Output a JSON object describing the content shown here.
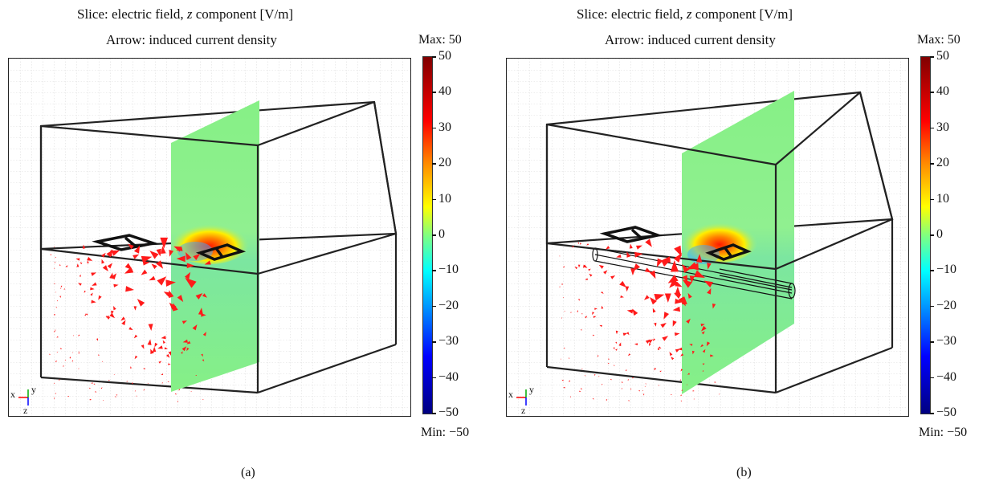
{
  "panels": [
    {
      "slice_title": {
        "pre": "Slice: electric field, ",
        "var": "z",
        "post": " component [V/m]"
      },
      "arrow_title": "Arrow: induced current density",
      "max_label": "Max: 50",
      "min_label": "Min: −50",
      "colorbar_ticks": [
        "50",
        "40",
        "30",
        "20",
        "10",
        "0",
        "−10",
        "−20",
        "−30",
        "−40",
        "−50"
      ],
      "axis_labels": {
        "x": "x",
        "y": "y",
        "z": "z"
      },
      "caption": "(a)"
    },
    {
      "slice_title": {
        "pre": "Slice: electric field, ",
        "var": "z",
        "post": " component [V/m]"
      },
      "arrow_title": "Arrow: induced current density",
      "max_label": "Max: 50",
      "min_label": "Min: −50",
      "colorbar_ticks": [
        "50",
        "40",
        "30",
        "20",
        "10",
        "0",
        "−10",
        "−20",
        "−30",
        "−40",
        "−50"
      ],
      "axis_labels": {
        "x": "x",
        "y": "y",
        "z": "z"
      },
      "caption": "(b)"
    }
  ],
  "colors": {
    "arrow": "#ff0000",
    "slice": "#8af08a",
    "frame": "#222222"
  }
}
